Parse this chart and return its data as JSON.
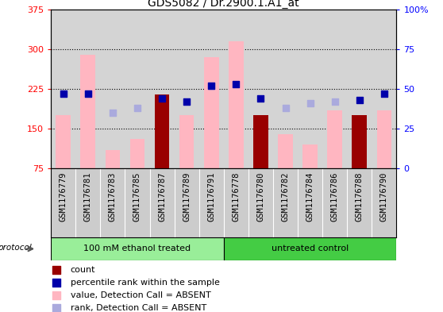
{
  "title": "GDS5082 / Dr.2900.1.A1_at",
  "samples": [
    "GSM1176779",
    "GSM1176781",
    "GSM1176783",
    "GSM1176785",
    "GSM1176787",
    "GSM1176789",
    "GSM1176791",
    "GSM1176778",
    "GSM1176780",
    "GSM1176782",
    "GSM1176784",
    "GSM1176786",
    "GSM1176788",
    "GSM1176790"
  ],
  "group1_label": "100 mM ethanol treated",
  "group2_label": "untreated control",
  "protocol_label": "protocol",
  "pink_bar_values": [
    175,
    290,
    110,
    130,
    215,
    175,
    285,
    315,
    175,
    140,
    120,
    185,
    175,
    185
  ],
  "dark_red_bar_values": [
    0,
    0,
    0,
    0,
    215,
    0,
    0,
    0,
    175,
    0,
    0,
    0,
    175,
    0
  ],
  "blue_square_pct": [
    47,
    47,
    0,
    0,
    44,
    42,
    52,
    53,
    44,
    0,
    0,
    0,
    43,
    47
  ],
  "has_blue_square": [
    true,
    true,
    false,
    false,
    true,
    true,
    true,
    true,
    true,
    false,
    false,
    false,
    true,
    true
  ],
  "has_dark_red": [
    false,
    false,
    false,
    false,
    true,
    false,
    false,
    false,
    true,
    false,
    false,
    false,
    true,
    false
  ],
  "light_blue_square_pct": [
    47,
    47,
    35,
    38,
    0,
    42,
    52,
    0,
    0,
    38,
    41,
    42,
    0,
    0
  ],
  "has_light_blue": [
    true,
    true,
    true,
    true,
    false,
    true,
    true,
    false,
    false,
    true,
    true,
    true,
    false,
    false
  ],
  "ylim_left": [
    75,
    375
  ],
  "ylim_right": [
    0,
    100
  ],
  "yticks_left": [
    75,
    150,
    225,
    300,
    375
  ],
  "yticks_right": [
    0,
    25,
    50,
    75,
    100
  ],
  "pink_color": "#FFB6C1",
  "dark_red_color": "#990000",
  "blue_color": "#0000AA",
  "light_blue_color": "#AAAADD",
  "group1_color": "#99EE99",
  "group2_color": "#44CC44",
  "plot_bg_color": "#D4D4D4",
  "xlabel_bg_color": "#CCCCCC",
  "title_fontsize": 10,
  "axis_fontsize": 8,
  "bar_width": 0.6,
  "square_size": 35,
  "n_group1": 7,
  "n_group2": 7
}
